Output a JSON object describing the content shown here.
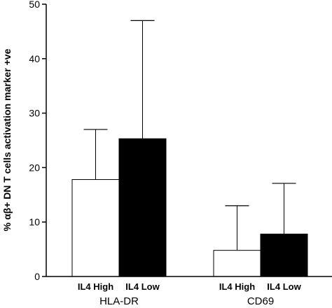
{
  "chart_data": {
    "type": "bar",
    "ylabel": "% αβ+ DN T cells activation marker +ve",
    "ylim": [
      0,
      50
    ],
    "yticks": [
      0,
      10,
      20,
      30,
      40,
      50
    ],
    "grid": false,
    "groups": [
      {
        "label": "HLA-DR",
        "bars": [
          {
            "label": "IL4 High",
            "value": 17.8,
            "error": 9.2,
            "color": "#ffffff"
          },
          {
            "label": "IL4 Low",
            "value": 25.3,
            "error": 21.7,
            "color": "#000000"
          }
        ]
      },
      {
        "label": "CD69",
        "bars": [
          {
            "label": "IL4 High",
            "value": 4.8,
            "error": 8.2,
            "color": "#ffffff"
          },
          {
            "label": "IL4 Low",
            "value": 7.8,
            "error": 9.3,
            "color": "#000000"
          }
        ]
      }
    ]
  }
}
